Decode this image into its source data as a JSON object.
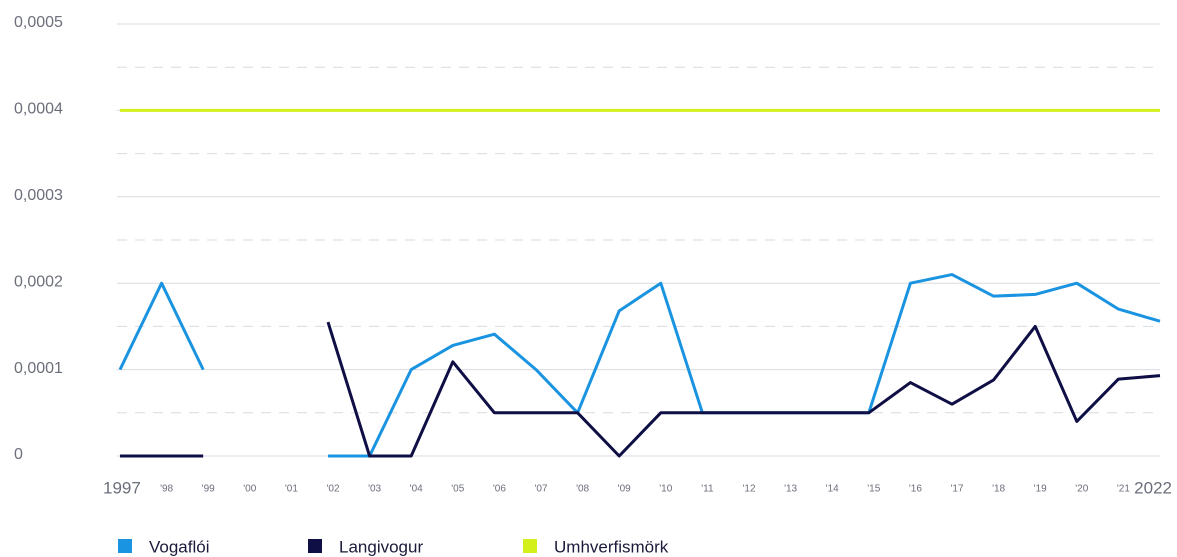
{
  "chart_data": {
    "type": "line",
    "categories": [
      "1997",
      "'98",
      "'99",
      "'00",
      "'01",
      "'02",
      "'03",
      "'04",
      "'05",
      "'06",
      "'07",
      "'08",
      "'09",
      "'10",
      "'11",
      "'12",
      "'13",
      "'14",
      "'15",
      "'16",
      "'17",
      "'18",
      "'19",
      "'20",
      "'21",
      "2022"
    ],
    "series": [
      {
        "name": "Vogaflói",
        "color": "#1a94e0",
        "values": [
          0.0001,
          0.0002,
          0.0001,
          null,
          null,
          0,
          0,
          0.0001,
          0.000128,
          0.000141,
          0.0001,
          5e-05,
          0.000168,
          0.0002,
          5e-05,
          5e-05,
          5e-05,
          5e-05,
          5e-05,
          0.0002,
          0.00021,
          0.000185,
          0.000187,
          0.0002,
          0.00017,
          0.000156
        ]
      },
      {
        "name": "Langivogur",
        "color": "#0f0e45",
        "values": [
          0,
          0,
          0,
          null,
          null,
          0.000155,
          0,
          0,
          0.000109,
          5e-05,
          5e-05,
          5e-05,
          0,
          5e-05,
          5e-05,
          5e-05,
          5e-05,
          5e-05,
          5e-05,
          8.5e-05,
          6e-05,
          8.8e-05,
          0.00015,
          4e-05,
          8.9e-05,
          9.3e-05
        ]
      },
      {
        "name": "Umhverfismörk",
        "color": "#d4f01c",
        "values": [
          0.0004,
          0.0004,
          0.0004,
          0.0004,
          0.0004,
          0.0004,
          0.0004,
          0.0004,
          0.0004,
          0.0004,
          0.0004,
          0.0004,
          0.0004,
          0.0004,
          0.0004,
          0.0004,
          0.0004,
          0.0004,
          0.0004,
          0.0004,
          0.0004,
          0.0004,
          0.0004,
          0.0004,
          0.0004,
          0.0004
        ]
      }
    ],
    "ylim": [
      0,
      0.0005
    ],
    "yticks": [
      0,
      {
        "value": 0.0001,
        "label": "0,0001"
      },
      {
        "value": 0.0002,
        "label": "0,0002"
      },
      {
        "value": 0.0003,
        "label": "0,0003"
      },
      {
        "value": 0.0004,
        "label": "0,0004"
      },
      {
        "value": 0.0005,
        "label": "0,0005"
      }
    ],
    "minor_yticks": [
      5e-05,
      0.00015,
      0.00025,
      0.00035,
      0.00045
    ],
    "grid": true,
    "legend": "bottom"
  }
}
